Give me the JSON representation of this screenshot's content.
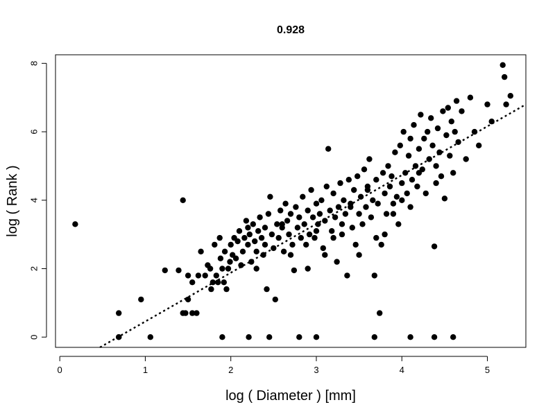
{
  "chart_data": {
    "type": "scatter",
    "title": "0.928",
    "xlabel": "log ( Diameter ) [mm]",
    "ylabel": "log ( Rank )",
    "xlim": [
      -0.05,
      5.45
    ],
    "ylim": [
      -0.3,
      8.25
    ],
    "xticks": [
      0,
      1,
      2,
      3,
      4,
      5
    ],
    "yticks": [
      0,
      2,
      4,
      6,
      8
    ],
    "grid": false,
    "legend": "none",
    "point_color": "#000000",
    "fit_line": {
      "style": "dotted",
      "x": [
        0.47,
        5.45
      ],
      "y": [
        -0.3,
        6.8
      ]
    },
    "series": [
      {
        "points": [
          [
            0.18,
            3.3
          ],
          [
            0.69,
            0.7
          ],
          [
            0.69,
            0.0
          ],
          [
            0.69,
            0.0
          ],
          [
            0.95,
            1.1
          ],
          [
            1.06,
            0.0
          ],
          [
            1.23,
            1.95
          ],
          [
            1.39,
            1.95
          ],
          [
            1.44,
            4.0
          ],
          [
            1.44,
            0.7
          ],
          [
            1.47,
            0.7
          ],
          [
            1.5,
            1.1
          ],
          [
            1.55,
            0.7
          ],
          [
            1.6,
            0.7
          ],
          [
            1.5,
            1.8
          ],
          [
            1.55,
            1.6
          ],
          [
            1.62,
            1.8
          ],
          [
            1.65,
            2.5
          ],
          [
            1.7,
            1.8
          ],
          [
            1.73,
            2.1
          ],
          [
            1.76,
            2.0
          ],
          [
            1.77,
            1.4
          ],
          [
            1.79,
            1.6
          ],
          [
            1.81,
            2.7
          ],
          [
            1.83,
            1.8
          ],
          [
            1.85,
            1.6
          ],
          [
            1.87,
            2.9
          ],
          [
            1.88,
            2.3
          ],
          [
            1.9,
            2.0
          ],
          [
            1.92,
            1.6
          ],
          [
            1.93,
            2.5
          ],
          [
            1.95,
            1.4
          ],
          [
            1.97,
            2.0
          ],
          [
            1.99,
            2.2
          ],
          [
            2.0,
            2.7
          ],
          [
            2.02,
            2.4
          ],
          [
            2.04,
            2.9
          ],
          [
            2.06,
            2.3
          ],
          [
            2.08,
            2.8
          ],
          [
            2.1,
            3.1
          ],
          [
            2.12,
            2.1
          ],
          [
            2.14,
            2.5
          ],
          [
            2.16,
            2.9
          ],
          [
            2.18,
            3.4
          ],
          [
            2.2,
            2.7
          ],
          [
            2.22,
            3.0
          ],
          [
            2.24,
            2.2
          ],
          [
            2.26,
            3.3
          ],
          [
            2.28,
            2.8
          ],
          [
            2.3,
            2.5
          ],
          [
            2.32,
            3.1
          ],
          [
            2.34,
            3.5
          ],
          [
            2.36,
            2.9
          ],
          [
            2.38,
            2.4
          ],
          [
            2.4,
            3.2
          ],
          [
            2.42,
            1.4
          ],
          [
            2.44,
            3.6
          ],
          [
            2.46,
            4.1
          ],
          [
            2.48,
            3.0
          ],
          [
            2.5,
            2.6
          ],
          [
            2.52,
            1.1
          ],
          [
            2.54,
            3.3
          ],
          [
            2.56,
            2.9
          ],
          [
            2.58,
            3.7
          ],
          [
            2.6,
            3.2
          ],
          [
            2.62,
            2.5
          ],
          [
            2.64,
            3.9
          ],
          [
            2.66,
            3.4
          ],
          [
            2.68,
            3.0
          ],
          [
            2.7,
            3.6
          ],
          [
            2.72,
            2.7
          ],
          [
            2.74,
            1.95
          ],
          [
            2.76,
            3.8
          ],
          [
            2.78,
            3.2
          ],
          [
            2.8,
            3.5
          ],
          [
            2.82,
            2.9
          ],
          [
            2.84,
            4.1
          ],
          [
            2.86,
            3.3
          ],
          [
            2.88,
            2.7
          ],
          [
            2.9,
            3.7
          ],
          [
            2.92,
            3.0
          ],
          [
            2.94,
            4.3
          ],
          [
            2.96,
            3.5
          ],
          [
            2.98,
            2.9
          ],
          [
            3.0,
            3.9
          ],
          [
            3.02,
            3.3
          ],
          [
            3.04,
            3.6
          ],
          [
            3.06,
            4.0
          ],
          [
            3.08,
            2.6
          ],
          [
            3.1,
            3.4
          ],
          [
            3.12,
            4.4
          ],
          [
            3.14,
            5.5
          ],
          [
            3.16,
            3.7
          ],
          [
            3.18,
            3.1
          ],
          [
            3.2,
            4.2
          ],
          [
            3.22,
            3.5
          ],
          [
            3.24,
            2.2
          ],
          [
            3.26,
            3.8
          ],
          [
            3.28,
            4.5
          ],
          [
            3.3,
            3.3
          ],
          [
            3.32,
            4.0
          ],
          [
            3.34,
            3.6
          ],
          [
            3.36,
            1.8
          ],
          [
            3.38,
            4.6
          ],
          [
            3.4,
            3.9
          ],
          [
            3.42,
            3.2
          ],
          [
            3.44,
            4.3
          ],
          [
            3.46,
            2.7
          ],
          [
            3.48,
            4.7
          ],
          [
            3.5,
            3.6
          ],
          [
            3.52,
            4.1
          ],
          [
            3.54,
            3.3
          ],
          [
            3.56,
            4.9
          ],
          [
            3.58,
            3.8
          ],
          [
            3.6,
            4.4
          ],
          [
            3.62,
            5.2
          ],
          [
            3.64,
            3.5
          ],
          [
            3.66,
            4.0
          ],
          [
            3.68,
            1.8
          ],
          [
            3.7,
            4.6
          ],
          [
            3.72,
            3.9
          ],
          [
            3.74,
            0.7
          ],
          [
            3.76,
            2.7
          ],
          [
            3.78,
            4.8
          ],
          [
            3.8,
            4.2
          ],
          [
            3.82,
            3.6
          ],
          [
            3.84,
            5.0
          ],
          [
            3.86,
            4.4
          ],
          [
            3.88,
            4.7
          ],
          [
            3.9,
            3.9
          ],
          [
            3.92,
            5.4
          ],
          [
            3.94,
            4.1
          ],
          [
            3.96,
            3.3
          ],
          [
            3.98,
            5.6
          ],
          [
            4.0,
            4.5
          ],
          [
            4.02,
            6.0
          ],
          [
            4.04,
            4.8
          ],
          [
            4.06,
            4.2
          ],
          [
            4.08,
            5.3
          ],
          [
            4.1,
            5.8
          ],
          [
            4.12,
            4.6
          ],
          [
            4.14,
            6.2
          ],
          [
            4.16,
            5.0
          ],
          [
            4.18,
            4.4
          ],
          [
            4.2,
            5.5
          ],
          [
            4.22,
            6.5
          ],
          [
            4.24,
            4.9
          ],
          [
            4.26,
            5.8
          ],
          [
            4.28,
            4.2
          ],
          [
            4.3,
            6.0
          ],
          [
            4.32,
            5.2
          ],
          [
            4.34,
            6.4
          ],
          [
            4.36,
            5.6
          ],
          [
            4.38,
            2.65
          ],
          [
            4.4,
            5.0
          ],
          [
            4.42,
            6.1
          ],
          [
            4.44,
            5.4
          ],
          [
            4.46,
            4.7
          ],
          [
            4.48,
            6.6
          ],
          [
            4.5,
            4.05
          ],
          [
            4.52,
            5.9
          ],
          [
            4.54,
            6.7
          ],
          [
            4.56,
            5.3
          ],
          [
            4.58,
            6.3
          ],
          [
            4.6,
            4.8
          ],
          [
            4.62,
            6.0
          ],
          [
            4.64,
            6.9
          ],
          [
            4.66,
            5.7
          ],
          [
            4.7,
            6.6
          ],
          [
            4.75,
            5.2
          ],
          [
            4.8,
            7.0
          ],
          [
            4.85,
            6.0
          ],
          [
            4.9,
            5.6
          ],
          [
            5.0,
            6.8
          ],
          [
            5.05,
            6.3
          ],
          [
            5.18,
            7.95
          ],
          [
            5.2,
            7.6
          ],
          [
            5.22,
            6.8
          ],
          [
            5.27,
            7.05
          ],
          [
            1.9,
            0.0
          ],
          [
            2.21,
            0.0
          ],
          [
            2.45,
            0.0
          ],
          [
            2.8,
            0.0
          ],
          [
            3.0,
            0.0
          ],
          [
            3.68,
            0.0
          ],
          [
            4.1,
            0.0
          ],
          [
            4.38,
            0.0
          ],
          [
            4.6,
            0.0
          ],
          [
            2.3,
            2.0
          ],
          [
            2.6,
            3.3
          ],
          [
            2.9,
            2.0
          ],
          [
            3.1,
            2.4
          ],
          [
            3.3,
            3.0
          ],
          [
            3.5,
            2.4
          ],
          [
            3.7,
            2.9
          ],
          [
            3.9,
            3.6
          ],
          [
            4.1,
            3.8
          ],
          [
            2.2,
            3.2
          ],
          [
            2.4,
            2.7
          ],
          [
            2.7,
            2.4
          ],
          [
            3.0,
            3.1
          ],
          [
            3.2,
            2.9
          ],
          [
            3.4,
            3.8
          ],
          [
            3.6,
            4.3
          ],
          [
            3.8,
            3.0
          ],
          [
            4.0,
            4.0
          ],
          [
            4.2,
            4.8
          ],
          [
            4.4,
            4.5
          ]
        ]
      }
    ]
  }
}
